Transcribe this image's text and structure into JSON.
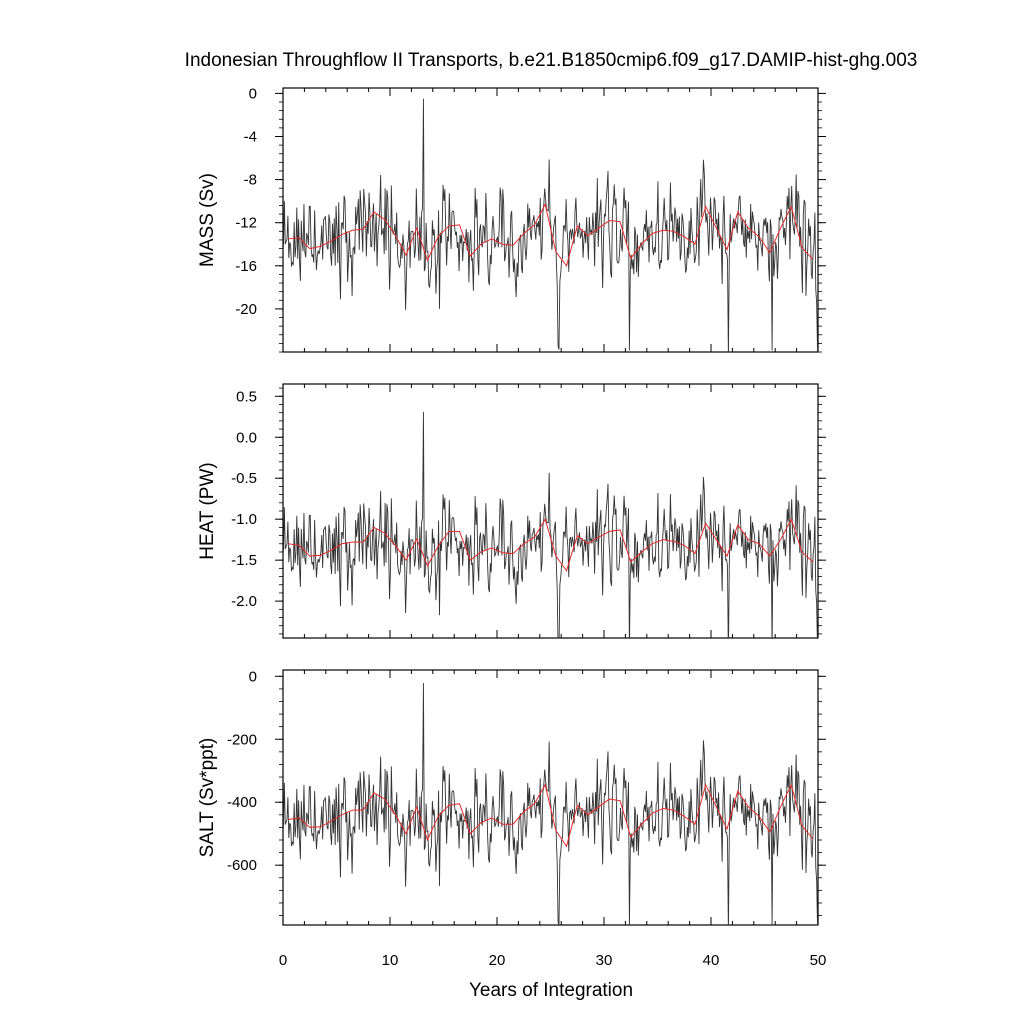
{
  "chart_data": {
    "type": "line",
    "title": "Indonesian Throughflow II Transports, b.e21.B1850cmip6.f09_g17.DAMIP-hist-ghg.003",
    "xlabel": "Years of Integration",
    "xlim": [
      0,
      50
    ],
    "x_ticks": [
      0,
      10,
      20,
      30,
      40,
      50
    ],
    "x_tick_labels": [
      "0",
      "10",
      "20",
      "30",
      "40",
      "50"
    ],
    "grid": false,
    "colors": {
      "monthly": "#333333",
      "annual": "#e8282a"
    },
    "panels": [
      {
        "ylabel": "MASS (Sv)",
        "ylim": [
          -24,
          0.5
        ],
        "y_ticks": [
          0,
          -4,
          -8,
          -12,
          -16,
          -20
        ],
        "y_tick_labels": [
          "0",
          "-4",
          "-8",
          "-12",
          "-16",
          "-20"
        ],
        "annual_x": [
          0.5,
          1.5,
          2.5,
          3.5,
          4.5,
          5.5,
          6.5,
          7.5,
          8.5,
          9.5,
          10.5,
          11.5,
          12.5,
          13.5,
          14.5,
          15.5,
          16.5,
          17.5,
          18.5,
          19.5,
          20.5,
          21.5,
          22.5,
          23.5,
          24.5,
          25.5,
          26.5,
          27.5,
          28.5,
          29.5,
          30.5,
          31.5,
          32.5,
          33.5,
          34.5,
          35.5,
          36.5,
          37.5,
          38.5,
          39.5,
          40.5,
          41.5,
          42.5,
          43.5,
          44.5,
          45.5,
          46.5,
          47.5,
          48.5,
          49.5
        ],
        "annual_y": [
          -13.5,
          -13.4,
          -14.4,
          -14.2,
          -13.7,
          -13.1,
          -12.7,
          -12.6,
          -11.0,
          -11.7,
          -13.2,
          -15.0,
          -12.5,
          -15.5,
          -13.3,
          -12.3,
          -12.2,
          -15.1,
          -14.0,
          -13.5,
          -14.0,
          -14.1,
          -13.0,
          -12.2,
          -10.3,
          -14.7,
          -16.0,
          -12.3,
          -13.2,
          -12.5,
          -11.8,
          -11.9,
          -15.3,
          -14.0,
          -13.0,
          -12.7,
          -12.8,
          -13.3,
          -14.0,
          -10.5,
          -12.5,
          -14.5,
          -11.0,
          -12.5,
          -13.3,
          -14.8,
          -12.5,
          -10.5,
          -14.3,
          -15.4
        ]
      },
      {
        "ylabel": "HEAT (PW)",
        "ylim": [
          -2.45,
          0.65
        ],
        "y_ticks": [
          0.5,
          0.0,
          -0.5,
          -1.0,
          -1.5,
          -2.0
        ],
        "y_tick_labels": [
          "0.5",
          "0.0",
          "-0.5",
          "-1.0",
          "-1.5",
          "-2.0"
        ],
        "annual_x": [
          0.5,
          1.5,
          2.5,
          3.5,
          4.5,
          5.5,
          6.5,
          7.5,
          8.5,
          9.5,
          10.5,
          11.5,
          12.5,
          13.5,
          14.5,
          15.5,
          16.5,
          17.5,
          18.5,
          19.5,
          20.5,
          21.5,
          22.5,
          23.5,
          24.5,
          25.5,
          26.5,
          27.5,
          28.5,
          29.5,
          30.5,
          31.5,
          32.5,
          33.5,
          34.5,
          35.5,
          36.5,
          37.5,
          38.5,
          39.5,
          40.5,
          41.5,
          42.5,
          43.5,
          44.5,
          45.5,
          46.5,
          47.5,
          48.5,
          49.5
        ],
        "annual_y": [
          -1.3,
          -1.32,
          -1.45,
          -1.44,
          -1.38,
          -1.3,
          -1.28,
          -1.28,
          -1.1,
          -1.17,
          -1.32,
          -1.5,
          -1.24,
          -1.57,
          -1.33,
          -1.15,
          -1.15,
          -1.5,
          -1.4,
          -1.35,
          -1.41,
          -1.42,
          -1.3,
          -1.22,
          -1.0,
          -1.45,
          -1.63,
          -1.2,
          -1.3,
          -1.22,
          -1.15,
          -1.13,
          -1.52,
          -1.4,
          -1.3,
          -1.25,
          -1.27,
          -1.32,
          -1.42,
          -1.05,
          -1.25,
          -1.45,
          -1.07,
          -1.25,
          -1.3,
          -1.45,
          -1.25,
          -1.0,
          -1.4,
          -1.52
        ]
      },
      {
        "ylabel": "SALT (Sv*ppt)",
        "ylim": [
          -790,
          20
        ],
        "y_ticks": [
          0,
          -200,
          -400,
          -600
        ],
        "y_tick_labels": [
          "0",
          "-200",
          "-400",
          "-600"
        ],
        "annual_x": [
          0.5,
          1.5,
          2.5,
          3.5,
          4.5,
          5.5,
          6.5,
          7.5,
          8.5,
          9.5,
          10.5,
          11.5,
          12.5,
          13.5,
          14.5,
          15.5,
          16.5,
          17.5,
          18.5,
          19.5,
          20.5,
          21.5,
          22.5,
          23.5,
          24.5,
          25.5,
          26.5,
          27.5,
          28.5,
          29.5,
          30.5,
          31.5,
          32.5,
          33.5,
          34.5,
          35.5,
          36.5,
          37.5,
          38.5,
          39.5,
          40.5,
          41.5,
          42.5,
          43.5,
          44.5,
          45.5,
          46.5,
          47.5,
          48.5,
          49.5
        ],
        "annual_y": [
          -455,
          -450,
          -480,
          -478,
          -460,
          -440,
          -425,
          -425,
          -370,
          -390,
          -440,
          -500,
          -415,
          -520,
          -445,
          -410,
          -405,
          -500,
          -465,
          -450,
          -470,
          -470,
          -430,
          -405,
          -345,
          -490,
          -540,
          -410,
          -440,
          -415,
          -390,
          -395,
          -510,
          -470,
          -435,
          -420,
          -425,
          -445,
          -470,
          -345,
          -415,
          -485,
          -365,
          -415,
          -445,
          -495,
          -415,
          -345,
          -475,
          -515
        ]
      }
    ]
  }
}
